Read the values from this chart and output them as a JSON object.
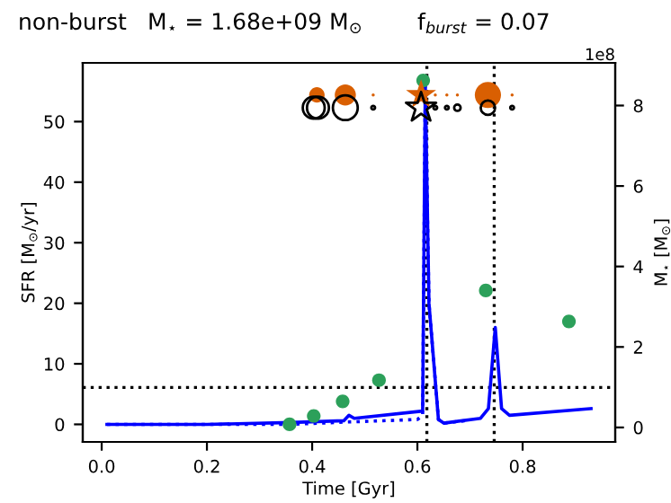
{
  "chart_data": {
    "type": "line",
    "title": "non-burst",
    "xlabel": "Time [Gyr]",
    "ylabel": "SFR [M$_{⊙}$/yr]",
    "y2label": "M$_{⋆}$ [M$_{⊙}$]",
    "annotations": [
      "M$_{⋆}$ = 1.68e+09 M$_{⊙}$",
      "f$_{burst}$ = 0.07",
      "1e8"
    ],
    "xlim": [
      -0.036,
      0.976
    ],
    "xticks": [
      {
        "value": 0,
        "label": "0.0"
      },
      0.2,
      0.4,
      0.6,
      0.8
    ],
    "ylim": [
      -2.9,
      59.7
    ],
    "yticks": [
      0,
      10,
      20,
      30,
      40,
      50
    ],
    "y2lim": [
      -0.36,
      9.06
    ],
    "y2ticks": [
      0,
      2,
      4,
      6,
      8
    ],
    "grid": false,
    "legend": false,
    "ref_lines": [
      {
        "axis": "y",
        "value": 6.1,
        "color": "#000000",
        "line_style": "dotted"
      },
      {
        "axis": "x",
        "value": 0.618,
        "color": "#000000",
        "line_style": "dotted"
      },
      {
        "axis": "x",
        "value": 0.746,
        "color": "#000000",
        "line_style": "dotted"
      }
    ],
    "series": [
      {
        "color": "#0000ff",
        "line_style": "solid",
        "marker": "none",
        "x": [
          0.01,
          0.2,
          0.36,
          0.46,
          0.47,
          0.48,
          0.61,
          0.615,
          0.622,
          0.64,
          0.65,
          0.72,
          0.735,
          0.748,
          0.76,
          0.775,
          0.93
        ],
        "values": [
          0,
          0,
          0.3,
          0.6,
          1.5,
          1.0,
          2.2,
          56,
          20,
          0.8,
          0.2,
          1.0,
          2.6,
          16.0,
          2.6,
          1.5,
          2.6
        ]
      },
      {
        "color": "#0000ff",
        "line_style": "dotted",
        "marker": "none",
        "x": [
          0.01,
          0.36,
          0.47,
          0.6,
          0.61,
          0.615,
          0.622,
          0.64,
          0.65,
          0.69
        ],
        "values": [
          0,
          0,
          0.4,
          0.8,
          1.5,
          56,
          20,
          0.8,
          0.2,
          0.6
        ]
      },
      {
        "type": "scatter",
        "color": "#2ca05a",
        "marker": "circle",
        "x": [
          0.357,
          0.403,
          0.458,
          0.527,
          0.611,
          0.73,
          0.888
        ],
        "values": [
          0,
          1.4,
          3.8,
          7.3,
          56.8,
          22.1,
          17.0
        ]
      },
      {
        "type": "bubble",
        "color": "#d95f02",
        "marker": "circle",
        "x": [
          0.409,
          0.463,
          0.516,
          0.634,
          0.656,
          0.676,
          0.734,
          0.78
        ],
        "values": [
          54.4,
          54.4,
          54.4,
          54.4,
          54.4,
          54.4,
          54.4,
          54.4
        ],
        "sizes": [
          0.35,
          0.65,
          0.01,
          0.01,
          0.01,
          0.01,
          1,
          0.01
        ]
      },
      {
        "type": "scatter",
        "color": "#d95f02",
        "marker": "star",
        "x": [
          0.607
        ],
        "values": [
          54.4
        ]
      },
      {
        "type": "bubble",
        "color": "#000000",
        "marker": "circle",
        "x": [
          0.403,
          0.411,
          0.463,
          0.516,
          0.634,
          0.656,
          0.676,
          0.734,
          0.78
        ],
        "values": [
          52.3,
          52.3,
          52.3,
          52.3,
          52.3,
          52.3,
          52.3,
          52.3,
          52.3
        ],
        "sizes": [
          0.7,
          0.7,
          0.9,
          0.02,
          0.02,
          0.02,
          0.06,
          0.3,
          0.02
        ]
      },
      {
        "type": "scatter",
        "color": "#000000",
        "marker": "star",
        "x": [
          0.607
        ],
        "values": [
          52.3
        ]
      }
    ]
  }
}
